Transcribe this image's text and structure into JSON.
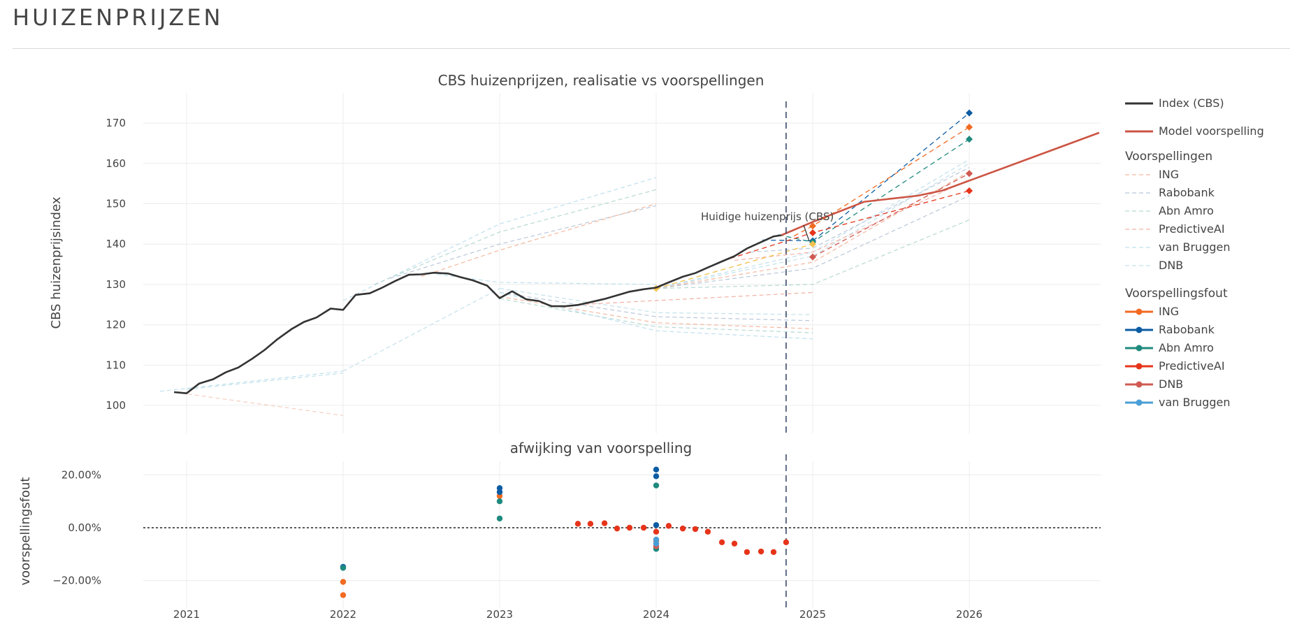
{
  "header": {
    "title": "HUIZENPRIJZEN"
  },
  "chart_data": [
    {
      "type": "line",
      "title": "CBS huizenprijzen, realisatie vs voorspellingen",
      "xlabel": "",
      "ylabel": "CBS huizenprijsindex",
      "xlim": [
        "2020-10-01",
        "2026-12-01"
      ],
      "ylim": [
        93,
        178
      ],
      "xticks": [
        "2021",
        "2022",
        "2023",
        "2024",
        "2025",
        "2026"
      ],
      "yticks": [
        100,
        110,
        120,
        130,
        140,
        150,
        160,
        170
      ],
      "annotation": {
        "text": "Huidige huizenprijs (CBS)",
        "x": 2024.88,
        "y": 142
      },
      "vline_x": 2024.83,
      "legend": {
        "main": [
          {
            "label": "Index (CBS)",
            "color": "#333333"
          },
          {
            "label": "Model voorspelling",
            "color": "#cc5544"
          }
        ],
        "voorspellingen_title": "Voorspellingen",
        "voorspellingen": [
          {
            "label": "ING",
            "color": "#f4b9a0"
          },
          {
            "label": "Rabobank",
            "color": "#b9c7d9"
          },
          {
            "label": "Abn Amro",
            "color": "#b7d9d3"
          },
          {
            "label": "PredictiveAI",
            "color": "#f3b2a6"
          },
          {
            "label": "van Bruggen",
            "color": "#bfe0ee"
          },
          {
            "label": "DNB",
            "color": "#c3e2ea"
          }
        ],
        "fout_title": "Voorspellingsfout",
        "fout": [
          {
            "label": "ING",
            "color": "#f26a21"
          },
          {
            "label": "Rabobank",
            "color": "#0b5ca3"
          },
          {
            "label": "Abn Amro",
            "color": "#1f8a7e"
          },
          {
            "label": "PredictiveAI",
            "color": "#e6341b"
          },
          {
            "label": "DNB",
            "color": "#d05a52"
          },
          {
            "label": "van Bruggen",
            "color": "#4a9ed6"
          }
        ]
      },
      "series": [
        {
          "name": "Index (CBS)",
          "color": "#333333",
          "x": [
            2020.92,
            2021.0,
            2021.08,
            2021.17,
            2021.25,
            2021.33,
            2021.42,
            2021.5,
            2021.58,
            2021.67,
            2021.75,
            2021.83,
            2021.92,
            2022.0,
            2022.08,
            2022.17,
            2022.25,
            2022.33,
            2022.42,
            2022.5,
            2022.58,
            2022.67,
            2022.75,
            2022.83,
            2022.92,
            2023.0,
            2023.08,
            2023.17,
            2023.25,
            2023.33,
            2023.42,
            2023.5,
            2023.58,
            2023.67,
            2023.75,
            2023.83,
            2023.92,
            2024.0,
            2024.08,
            2024.17,
            2024.25,
            2024.33,
            2024.42,
            2024.5,
            2024.58,
            2024.67,
            2024.75,
            2024.8
          ],
          "y": [
            103.3,
            103.0,
            105.4,
            106.5,
            108.2,
            109.4,
            111.6,
            113.8,
            116.4,
            118.9,
            120.7,
            121.8,
            124.0,
            123.7,
            127.4,
            127.8,
            129.2,
            130.8,
            132.4,
            132.5,
            132.9,
            132.7,
            131.8,
            131.0,
            129.7,
            126.6,
            128.3,
            126.3,
            125.9,
            124.6,
            124.6,
            124.9,
            125.6,
            126.4,
            127.3,
            128.2,
            128.8,
            129.2,
            130.5,
            131.9,
            132.8,
            134.2,
            135.7,
            137.0,
            138.9,
            140.5,
            141.9,
            142.2
          ]
        },
        {
          "name": "Model voorspelling",
          "color": "#cc5544",
          "x": [
            2024.8,
            2025.0,
            2025.33,
            2025.67,
            2025.83,
            2026.83
          ],
          "y": [
            142.2,
            145.5,
            150.5,
            152.0,
            153.3,
            167.6
          ]
        }
      ],
      "forecasts": [
        {
          "name": "ING",
          "color": "#f26a21",
          "x": [
            2024.88,
            2025.0,
            2026.0
          ],
          "y": [
            142.0,
            144.5,
            169.0
          ]
        },
        {
          "name": "Rabobank",
          "color": "#0b5ca3",
          "x": [
            2024.68,
            2025.0,
            2026.0
          ],
          "y": [
            141.0,
            140.8,
            172.5
          ]
        },
        {
          "name": "Abn Amro",
          "color": "#1f8a7e",
          "x": [
            2024.78,
            2025.0,
            2026.0
          ],
          "y": [
            142.3,
            140.5,
            166.0
          ]
        },
        {
          "name": "PredictiveAI",
          "color": "#e6341b",
          "x": [
            2024.42,
            2025.0,
            2026.0
          ],
          "y": [
            135.8,
            142.8,
            153.2
          ]
        },
        {
          "name": "DNB",
          "color": "#d05a52",
          "x": [
            2025.0,
            2026.0
          ],
          "y": [
            136.8,
            157.5
          ]
        },
        {
          "name": "van Bruggen",
          "color": "#f2c14e",
          "x": [
            2024.0,
            2025.0
          ],
          "y": [
            129.0,
            140.0
          ]
        }
      ],
      "past_forecasts": [
        {
          "color": "#bfe0ee",
          "x": [
            2020.83,
            2022.0
          ],
          "y": [
            103.5,
            108.5
          ]
        },
        {
          "color": "#f4cfc0",
          "x": [
            2020.92,
            2022.0
          ],
          "y": [
            103.3,
            97.5
          ]
        },
        {
          "color": "#c3e2ea",
          "x": [
            2021.0,
            2022.0
          ],
          "y": [
            104.0,
            108.0
          ]
        },
        {
          "color": "#c3e2ea",
          "x": [
            2022.0,
            2023.0
          ],
          "y": [
            108.5,
            129.0
          ]
        },
        {
          "color": "#bfe0ee",
          "x": [
            2022.0,
            2023.0,
            2024.0
          ],
          "y": [
            126.0,
            145.0,
            156.5
          ]
        },
        {
          "color": "#b7d9d3",
          "x": [
            2022.2,
            2023.0,
            2024.0
          ],
          "y": [
            130.0,
            143.0,
            153.5
          ]
        },
        {
          "color": "#b9c7d9",
          "x": [
            2022.3,
            2023.0,
            2024.0
          ],
          "y": [
            131.5,
            140.0,
            149.5
          ]
        },
        {
          "color": "#f4b9a0",
          "x": [
            2022.5,
            2023.0,
            2024.0
          ],
          "y": [
            132.0,
            138.5,
            150.0
          ]
        },
        {
          "color": "#bfe0ee",
          "x": [
            2022.6,
            2023.0,
            2024.0
          ],
          "y": [
            132.5,
            130.5,
            130.0
          ]
        },
        {
          "color": "#b7d9d3",
          "x": [
            2023.0,
            2024.0,
            2025.0
          ],
          "y": [
            126.5,
            119.5,
            118.0
          ]
        },
        {
          "color": "#b9c7d9",
          "x": [
            2023.0,
            2024.0,
            2025.0
          ],
          "y": [
            128.0,
            122.0,
            121.0
          ]
        },
        {
          "color": "#f4b9a0",
          "x": [
            2023.0,
            2024.0,
            2025.0
          ],
          "y": [
            127.0,
            120.5,
            119.0
          ]
        },
        {
          "color": "#c3e2ea",
          "x": [
            2023.0,
            2024.0,
            2025.0
          ],
          "y": [
            129.0,
            123.0,
            122.5
          ]
        },
        {
          "color": "#bfe0ee",
          "x": [
            2023.0,
            2024.0,
            2025.0
          ],
          "y": [
            128.0,
            118.5,
            116.5
          ]
        },
        {
          "color": "#f3b2a6",
          "x": [
            2023.5,
            2024.0,
            2025.0
          ],
          "y": [
            125.0,
            126.0,
            128.0
          ]
        },
        {
          "color": "#b7d9d3",
          "x": [
            2024.0,
            2025.0,
            2026.0
          ],
          "y": [
            129.0,
            130.0,
            146.0
          ]
        },
        {
          "color": "#b9c7d9",
          "x": [
            2024.0,
            2025.0,
            2026.0
          ],
          "y": [
            129.0,
            134.0,
            152.0
          ]
        },
        {
          "color": "#f4b9a0",
          "x": [
            2024.0,
            2025.0,
            2026.0
          ],
          "y": [
            129.0,
            135.5,
            158.0
          ]
        },
        {
          "color": "#c3e2ea",
          "x": [
            2024.0,
            2025.0,
            2026.0
          ],
          "y": [
            129.0,
            137.0,
            160.0
          ]
        },
        {
          "color": "#bfe0ee",
          "x": [
            2024.0,
            2025.0,
            2026.0
          ],
          "y": [
            129.0,
            138.0,
            161.0
          ]
        },
        {
          "color": "#f3b2a6",
          "x": [
            2024.5,
            2025.0,
            2026.0
          ],
          "y": [
            136.0,
            138.0,
            156.0
          ]
        },
        {
          "color": "#b9c7d9",
          "x": [
            2024.6,
            2025.0,
            2026.0
          ],
          "y": [
            138.0,
            139.0,
            159.0
          ]
        }
      ]
    },
    {
      "type": "scatter",
      "title": "afwijking van voorspelling",
      "xlabel": "",
      "ylabel": "voorspellingsfout",
      "xlim": [
        "2020-10-01",
        "2026-12-01"
      ],
      "ylim": [
        -0.3,
        0.3
      ],
      "yticks": [
        "20.00%",
        "0.00%",
        "−20.00%"
      ],
      "ytick_values": [
        0.2,
        0.0,
        -0.2
      ],
      "xticks": [
        "2021",
        "2022",
        "2023",
        "2024",
        "2025",
        "2026"
      ],
      "hline_y": 0,
      "vline_x": 2024.83,
      "points": [
        {
          "name": "ING",
          "color": "#f26a21",
          "x": [
            2022.0,
            2022.0,
            2023.0,
            2024.0
          ],
          "y": [
            -0.205,
            -0.255,
            0.12,
            -0.05
          ]
        },
        {
          "name": "Rabobank",
          "color": "#0b5ca3",
          "x": [
            2022.0,
            2023.0,
            2023.0,
            2024.0,
            2024.0,
            2024.0
          ],
          "y": [
            -0.148,
            0.15,
            0.135,
            0.22,
            0.195,
            0.01
          ]
        },
        {
          "name": "Abn Amro",
          "color": "#1f8a7e",
          "x": [
            2022.0,
            2023.0,
            2023.0,
            2024.0,
            2024.0
          ],
          "y": [
            -0.152,
            0.1,
            0.035,
            0.16,
            -0.08
          ]
        },
        {
          "name": "PredictiveAI",
          "color": "#e6341b",
          "x": [
            2023.5,
            2023.58,
            2023.67,
            2023.75,
            2023.83,
            2023.92,
            2024.0,
            2024.08,
            2024.17,
            2024.25,
            2024.33,
            2024.42,
            2024.5,
            2024.58,
            2024.67,
            2024.75,
            2024.83
          ],
          "y": [
            0.015,
            0.015,
            0.017,
            -0.003,
            0.0,
            0.0,
            -0.015,
            0.007,
            -0.003,
            -0.005,
            -0.015,
            -0.055,
            -0.06,
            -0.092,
            -0.09,
            -0.092,
            -0.055
          ]
        },
        {
          "name": "DNB",
          "color": "#d05a52",
          "x": [
            2024.0
          ],
          "y": [
            -0.07
          ]
        },
        {
          "name": "van Bruggen",
          "color": "#4a9ed6",
          "x": [
            2024.0,
            2024.0
          ],
          "y": [
            -0.045,
            -0.06
          ]
        }
      ]
    }
  ]
}
